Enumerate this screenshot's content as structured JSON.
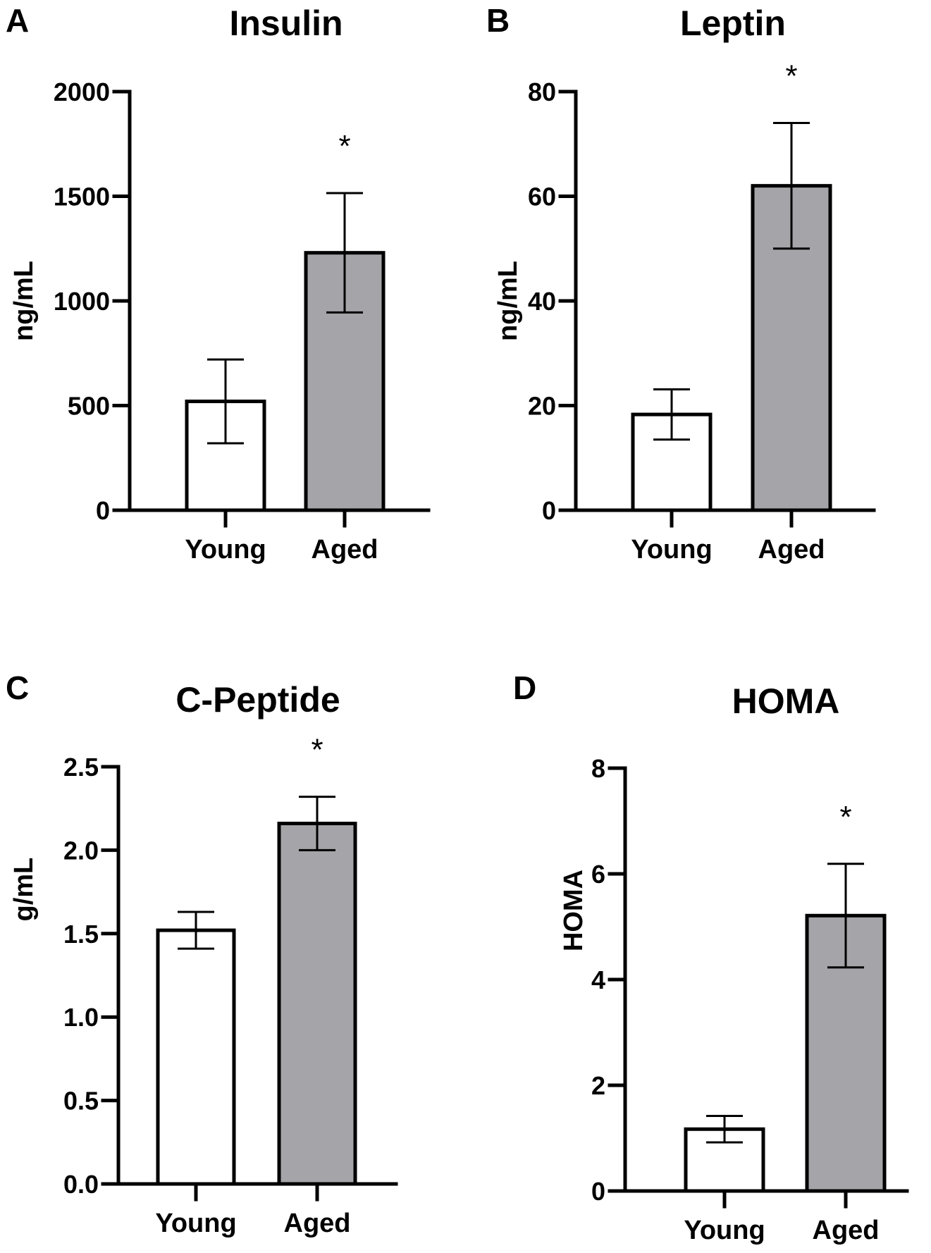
{
  "chart_data": [
    {
      "panel": "A",
      "type": "bar",
      "title": "Insulin",
      "xlabel": "",
      "ylabel": "ng/mL",
      "ylim": [
        0,
        2000
      ],
      "yticks": [
        0,
        500,
        1000,
        1500,
        2000
      ],
      "ytick_labels": [
        "0",
        "500",
        "1000",
        "1500",
        "2000"
      ],
      "categories": [
        "Young",
        "Aged"
      ],
      "values": [
        520,
        1230
      ],
      "errors": [
        200,
        285
      ],
      "bar_colors": [
        "#ffffff",
        "#a5a4a9"
      ],
      "annotations": [
        "",
        "*"
      ],
      "grid": false
    },
    {
      "panel": "B",
      "type": "bar",
      "title": "Leptin",
      "xlabel": "",
      "ylabel": "ng/mL",
      "ylim": [
        0,
        80
      ],
      "yticks": [
        0,
        20,
        40,
        60,
        80
      ],
      "ytick_labels": [
        "0",
        "20",
        "40",
        "60",
        "80"
      ],
      "categories": [
        "Young",
        "Aged"
      ],
      "values": [
        18.3,
        62
      ],
      "errors": [
        4.8,
        12
      ],
      "bar_colors": [
        "#ffffff",
        "#a5a4a9"
      ],
      "annotations": [
        "",
        "*"
      ],
      "grid": false
    },
    {
      "panel": "C",
      "type": "bar",
      "title": "C-Peptide",
      "xlabel": "",
      "ylabel": "g/mL",
      "ylim": [
        0,
        2.5
      ],
      "yticks": [
        0,
        0.5,
        1,
        1.5,
        2,
        2.5
      ],
      "ytick_labels": [
        "0.0",
        "0.5",
        "1.0",
        "1.5",
        "2.0",
        "2.5"
      ],
      "categories": [
        "Young",
        "Aged"
      ],
      "values": [
        1.52,
        2.16
      ],
      "errors": [
        0.11,
        0.16
      ],
      "bar_colors": [
        "#ffffff",
        "#a5a4a9"
      ],
      "annotations": [
        "",
        "*"
      ],
      "grid": false
    },
    {
      "panel": "D",
      "type": "bar",
      "title": "HOMA",
      "xlabel": "",
      "ylabel": "HOMA",
      "ylim": [
        0,
        8
      ],
      "yticks": [
        0,
        2,
        4,
        6,
        8
      ],
      "ytick_labels": [
        "0",
        "2",
        "4",
        "6",
        "8"
      ],
      "categories": [
        "Young",
        "Aged"
      ],
      "values": [
        1.17,
        5.21
      ],
      "errors": [
        0.25,
        0.98
      ],
      "bar_colors": [
        "#ffffff",
        "#a5a4a9"
      ],
      "annotations": [
        "",
        "*"
      ],
      "grid": false
    }
  ]
}
